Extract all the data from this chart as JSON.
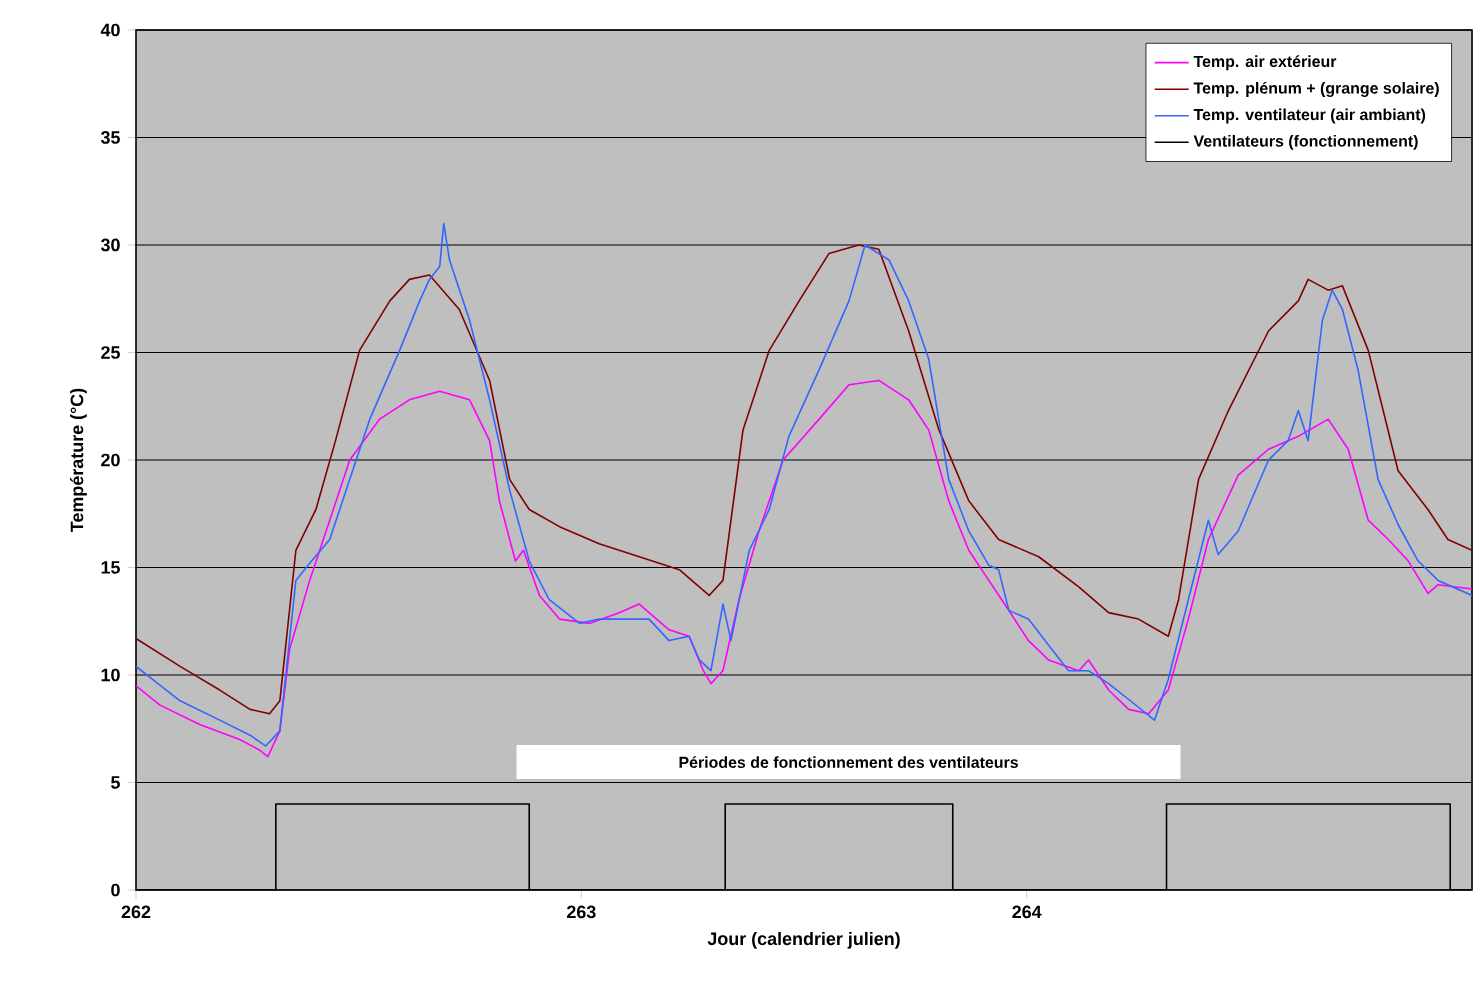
{
  "chart_data": {
    "type": "line",
    "xlabel": "Jour (calendrier julien)",
    "ylabel": "Température (°C)",
    "xlim": [
      262,
      265
    ],
    "xticks": [
      262,
      263,
      264
    ],
    "ylim": [
      0,
      40
    ],
    "yticks": [
      0,
      5,
      10,
      15,
      20,
      25,
      30,
      35,
      40
    ],
    "grid": "y",
    "legend": "top right",
    "annotations": [
      "Périodes de fonctionnement des ventilateurs"
    ],
    "series": [
      {
        "name": "Temp. air extérieur",
        "color": "#ff00ff",
        "x": [
          262.0,
          262.054,
          262.143,
          262.233,
          262.278,
          262.296,
          262.323,
          262.345,
          262.39,
          262.435,
          262.48,
          262.547,
          262.614,
          262.682,
          262.749,
          262.794,
          262.816,
          262.852,
          262.87,
          262.906,
          262.951,
          263.018,
          263.085,
          263.13,
          263.197,
          263.242,
          263.274,
          263.291,
          263.318,
          263.354,
          263.399,
          263.453,
          263.534,
          263.601,
          263.668,
          263.735,
          263.78,
          263.825,
          263.87,
          263.915,
          263.96,
          264.004,
          264.049,
          264.117,
          264.139,
          264.184,
          264.229,
          264.274,
          264.318,
          264.363,
          264.408,
          264.475,
          264.543,
          264.61,
          264.677,
          264.722,
          264.767,
          264.812,
          264.857,
          264.901,
          264.924,
          265.0
        ],
        "values": [
          9.5,
          8.6,
          7.7,
          7.0,
          6.5,
          6.2,
          7.4,
          11.2,
          14.4,
          17.2,
          20.0,
          21.9,
          22.8,
          23.2,
          22.8,
          20.9,
          18.1,
          15.3,
          15.8,
          13.7,
          12.6,
          12.4,
          12.9,
          13.3,
          12.1,
          11.8,
          10.2,
          9.6,
          10.2,
          13.5,
          16.7,
          20.0,
          21.9,
          23.5,
          23.7,
          22.8,
          21.4,
          18.1,
          15.8,
          14.4,
          13.0,
          11.6,
          10.7,
          10.2,
          10.7,
          9.3,
          8.4,
          8.2,
          9.3,
          12.6,
          16.3,
          19.3,
          20.5,
          21.1,
          21.9,
          20.5,
          17.2,
          16.3,
          15.3,
          13.8,
          14.2,
          14.0
        ]
      },
      {
        "name": "Temp. plénum + (grange solaire)",
        "color": "#800000",
        "x": [
          262.0,
          262.099,
          262.188,
          262.256,
          262.3,
          262.323,
          262.359,
          262.404,
          262.448,
          262.502,
          262.57,
          262.614,
          262.659,
          262.726,
          262.794,
          262.839,
          262.883,
          262.951,
          263.04,
          263.13,
          263.22,
          263.287,
          263.318,
          263.363,
          263.422,
          263.489,
          263.556,
          263.623,
          263.668,
          263.735,
          263.803,
          263.87,
          263.937,
          264.027,
          264.117,
          264.184,
          264.251,
          264.318,
          264.341,
          264.386,
          264.453,
          264.543,
          264.61,
          264.632,
          264.677,
          264.709,
          264.767,
          264.834,
          264.901,
          264.946,
          265.0
        ],
        "values": [
          11.7,
          10.4,
          9.3,
          8.4,
          8.2,
          8.8,
          15.8,
          17.7,
          20.9,
          25.1,
          27.4,
          28.4,
          28.6,
          27.0,
          23.7,
          19.1,
          17.7,
          16.9,
          16.1,
          15.5,
          14.9,
          13.7,
          14.4,
          21.4,
          25.1,
          27.4,
          29.6,
          30.0,
          29.8,
          26.0,
          21.4,
          18.1,
          16.3,
          15.5,
          14.1,
          12.9,
          12.6,
          11.8,
          13.5,
          19.1,
          22.3,
          26.0,
          27.4,
          28.4,
          27.9,
          28.1,
          25.1,
          19.5,
          17.7,
          16.3,
          15.8
        ]
      },
      {
        "name": "Temp. ventilateur (air ambiant)",
        "color": "#3366ff",
        "x": [
          262.0,
          262.099,
          262.188,
          262.256,
          262.291,
          262.323,
          262.359,
          262.39,
          262.435,
          262.48,
          262.525,
          262.592,
          262.637,
          262.659,
          262.682,
          262.691,
          262.704,
          262.749,
          262.794,
          262.839,
          262.883,
          262.928,
          262.996,
          263.04,
          263.085,
          263.152,
          263.197,
          263.242,
          263.265,
          263.291,
          263.318,
          263.336,
          263.377,
          263.422,
          263.466,
          263.534,
          263.601,
          263.637,
          263.691,
          263.735,
          263.78,
          263.825,
          263.87,
          263.915,
          263.937,
          263.96,
          264.004,
          264.049,
          264.094,
          264.139,
          264.184,
          264.251,
          264.287,
          264.318,
          264.363,
          264.408,
          264.43,
          264.475,
          264.543,
          264.587,
          264.61,
          264.632,
          264.664,
          264.686,
          264.709,
          264.744,
          264.789,
          264.834,
          264.879,
          264.924,
          265.0
        ],
        "values": [
          10.4,
          8.8,
          7.9,
          7.2,
          6.7,
          7.4,
          14.4,
          15.2,
          16.3,
          19.1,
          21.9,
          25.1,
          27.4,
          28.4,
          29.0,
          31.0,
          29.3,
          26.5,
          22.8,
          18.6,
          15.3,
          13.5,
          12.4,
          12.6,
          12.6,
          12.6,
          11.6,
          11.8,
          10.7,
          10.2,
          13.3,
          11.6,
          15.8,
          17.7,
          21.1,
          24.2,
          27.4,
          30.0,
          29.3,
          27.4,
          24.7,
          19.1,
          16.7,
          15.1,
          14.9,
          13.0,
          12.6,
          11.4,
          10.2,
          10.2,
          9.6,
          8.5,
          7.9,
          9.8,
          13.5,
          17.2,
          15.6,
          16.7,
          20.0,
          20.9,
          22.3,
          20.9,
          26.5,
          27.9,
          27.0,
          24.2,
          19.1,
          17.0,
          15.3,
          14.4,
          13.7
        ]
      },
      {
        "name": "Ventilateurs (fonctionnement)",
        "type": "step",
        "color": "#000000",
        "x": [
          262.0,
          262.314,
          262.883,
          263.323,
          263.834,
          264.314,
          264.951,
          265.0
        ],
        "values": [
          0,
          4,
          0,
          4,
          0,
          4,
          0,
          0
        ]
      }
    ]
  }
}
